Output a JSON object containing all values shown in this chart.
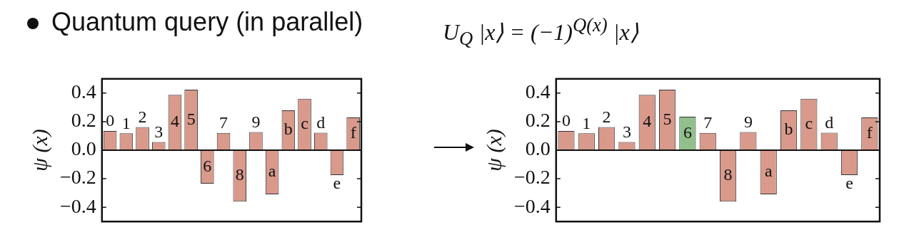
{
  "chart_data": [
    {
      "type": "bar",
      "title": "Quantum query (in parallel)",
      "ylabel": "ψ (x)",
      "categories": [
        "0",
        "1",
        "2",
        "3",
        "4",
        "5",
        "6",
        "7",
        "8",
        "9",
        "a",
        "b",
        "c",
        "d",
        "e",
        "f"
      ],
      "values": [
        0.135,
        0.118,
        0.162,
        0.057,
        0.388,
        0.424,
        -0.235,
        0.121,
        -0.361,
        0.127,
        -0.309,
        0.279,
        0.36,
        0.122,
        -0.175,
        0.229
      ],
      "color": "#d99a8c",
      "ref_lines": [
        {
          "axis": "y",
          "value": 0
        }
      ],
      "ylim": [
        -0.5,
        0.5
      ],
      "yticks": [
        {
          "value": -0.4,
          "label": "−0.4"
        },
        {
          "value": -0.2,
          "label": "−0.2"
        },
        {
          "value": 0,
          "label": "0.0"
        },
        {
          "value": 0.2,
          "label": "0.2"
        },
        {
          "value": 0.4,
          "label": "0.4"
        }
      ],
      "tick_labels": "y",
      "grid": false,
      "legend": false
    },
    {
      "type": "bar",
      "title": "U$_{Q}$ |x⟩ = (−1)$^{Q(x)}$ |x⟩",
      "ylabel": "ψ (x)",
      "categories": [
        "0",
        "1",
        "2",
        "3",
        "4",
        "5",
        "6",
        "7",
        "8",
        "9",
        "a",
        "b",
        "c",
        "d",
        "e",
        "f"
      ],
      "values": [
        0.135,
        0.118,
        0.162,
        0.057,
        0.388,
        0.424,
        0.235,
        0.121,
        -0.361,
        0.127,
        -0.309,
        0.279,
        0.36,
        0.122,
        -0.175,
        0.229
      ],
      "colors": [
        "#d99a8c",
        "#d99a8c",
        "#d99a8c",
        "#d99a8c",
        "#d99a8c",
        "#d99a8c",
        "#92c08c",
        "#d99a8c",
        "#d99a8c",
        "#d99a8c",
        "#d99a8c",
        "#d99a8c",
        "#d99a8c",
        "#d99a8c",
        "#d99a8c",
        "#d99a8c"
      ],
      "ref_lines": [
        {
          "axis": "y",
          "value": 0
        }
      ],
      "ylim": [
        -0.5,
        0.5
      ],
      "yticks": [
        {
          "value": -0.4,
          "label": "−0.4"
        },
        {
          "value": -0.2,
          "label": "−0.2"
        },
        {
          "value": 0,
          "label": "0.0"
        },
        {
          "value": 0.2,
          "label": "0.2"
        },
        {
          "value": 0.4,
          "label": "0.4"
        }
      ],
      "tick_labels": "y",
      "grid": false,
      "legend": false
    }
  ]
}
